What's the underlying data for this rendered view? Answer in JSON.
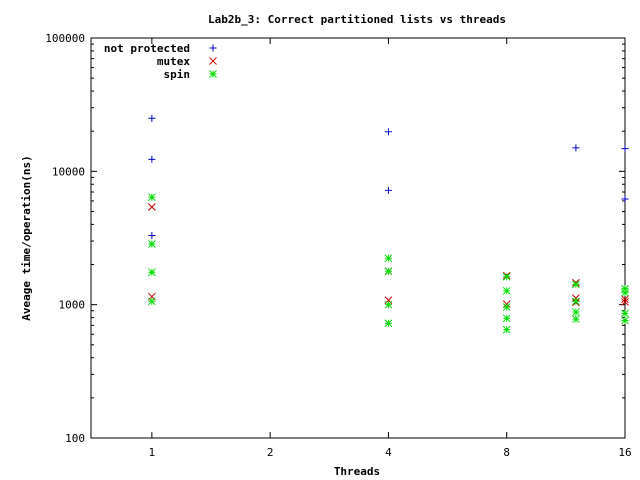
{
  "chart_data": {
    "type": "scatter",
    "title": "Lab2b_3: Correct partitioned lists vs threads",
    "xlabel": "Threads",
    "ylabel": "Aveage time/operation(ns)",
    "x_scale": "log2",
    "y_scale": "log10",
    "xlim": [
      0.7,
      16
    ],
    "ylim": [
      100,
      100000
    ],
    "x_ticks": [
      {
        "value": 1,
        "label": "1"
      },
      {
        "value": 2,
        "label": "2"
      },
      {
        "value": 4,
        "label": "4"
      },
      {
        "value": 8,
        "label": "8"
      },
      {
        "value": 16,
        "label": "16"
      }
    ],
    "y_ticks": [
      {
        "value": 100,
        "label": "100"
      },
      {
        "value": 1000,
        "label": "1000"
      },
      {
        "value": 10000,
        "label": "10000"
      },
      {
        "value": 100000,
        "label": "100000"
      }
    ],
    "legend_position": "top-left",
    "grid": false,
    "series": [
      {
        "name": "not protected",
        "marker": "+",
        "color": "#0000cc",
        "points": [
          [
            1,
            25000
          ],
          [
            1,
            12300
          ],
          [
            1,
            3300
          ],
          [
            4,
            19800
          ],
          [
            4,
            7200
          ],
          [
            12,
            15000
          ],
          [
            16,
            14800
          ],
          [
            16,
            6200
          ]
        ]
      },
      {
        "name": "mutex",
        "marker": "x",
        "color": "#cc0000",
        "points": [
          [
            1,
            5400
          ],
          [
            1,
            1150
          ],
          [
            4,
            1780
          ],
          [
            4,
            1080
          ],
          [
            8,
            1650
          ],
          [
            8,
            1010
          ],
          [
            12,
            1460
          ],
          [
            12,
            1120
          ],
          [
            12,
            1040
          ],
          [
            16,
            1100
          ],
          [
            16,
            1050
          ]
        ]
      },
      {
        "name": "spin",
        "marker": "*",
        "color": "#00dd00",
        "points": [
          [
            1,
            6400
          ],
          [
            1,
            2850
          ],
          [
            1,
            1750
          ],
          [
            1,
            1060
          ],
          [
            4,
            2230
          ],
          [
            4,
            1780
          ],
          [
            4,
            1000
          ],
          [
            4,
            725
          ],
          [
            8,
            1620
          ],
          [
            8,
            1270
          ],
          [
            8,
            960
          ],
          [
            8,
            790
          ],
          [
            8,
            650
          ],
          [
            12,
            1420
          ],
          [
            12,
            1060
          ],
          [
            12,
            880
          ],
          [
            12,
            780
          ],
          [
            16,
            1320
          ],
          [
            16,
            1230
          ],
          [
            16,
            860
          ],
          [
            16,
            760
          ]
        ]
      }
    ]
  }
}
